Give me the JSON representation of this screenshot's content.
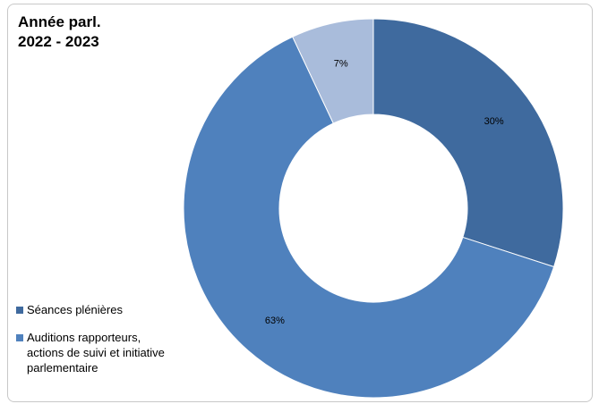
{
  "chart_data": {
    "type": "donut",
    "title": "Année parl.\n2022 - 2023",
    "categories": [
      "Séances plénières",
      "Auditions rapporteurs, actions de suivi et initiative parlementaire",
      ""
    ],
    "values": [
      30,
      63,
      7
    ],
    "data_labels": [
      "30%",
      "63%",
      "7%"
    ],
    "colors": [
      "#3F6A9E",
      "#4F81BD",
      "#A9BCDB"
    ],
    "legend_position": "bottom-left"
  },
  "legend": [
    {
      "label": "Séances plénières",
      "color": "#3F6A9E"
    },
    {
      "label": "Auditions rapporteurs,\nactions de suivi et initiative\nparlementaire",
      "color": "#4F81BD"
    }
  ]
}
